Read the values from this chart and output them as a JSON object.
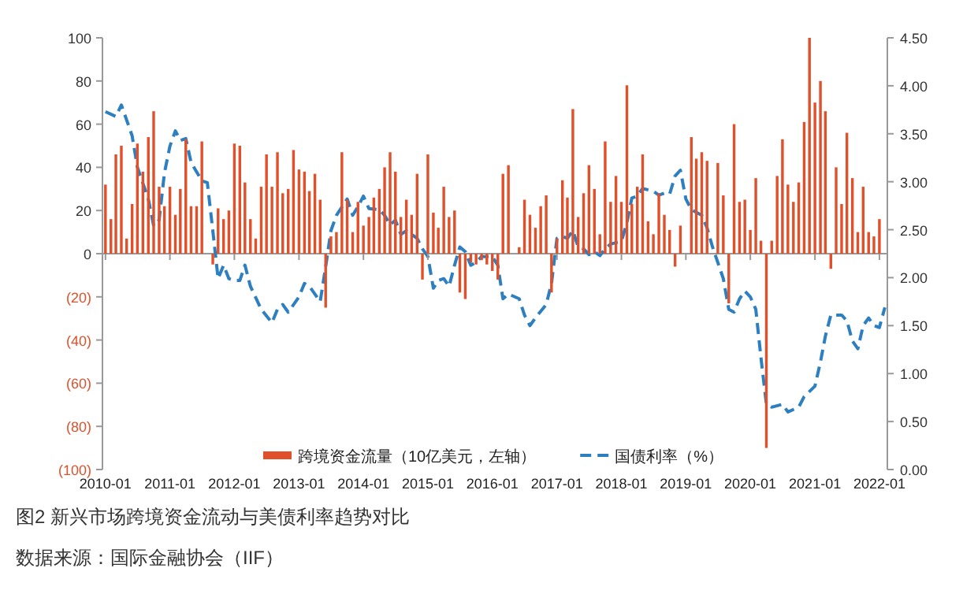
{
  "chart_data": {
    "type": "bar",
    "title": "图2 新兴市场跨境资金流动与美债利率趋势对比",
    "annotations": [
      "数据来源：国际金融协会（IIF）"
    ],
    "x": [
      "2010-01",
      "2010-02",
      "2010-03",
      "2010-04",
      "2010-05",
      "2010-06",
      "2010-07",
      "2010-08",
      "2010-09",
      "2010-10",
      "2010-11",
      "2010-12",
      "2011-01",
      "2011-02",
      "2011-03",
      "2011-04",
      "2011-05",
      "2011-06",
      "2011-07",
      "2011-08",
      "2011-09",
      "2011-10",
      "2011-11",
      "2011-12",
      "2012-01",
      "2012-02",
      "2012-03",
      "2012-04",
      "2012-05",
      "2012-06",
      "2012-07",
      "2012-08",
      "2012-09",
      "2012-10",
      "2012-11",
      "2012-12",
      "2013-01",
      "2013-02",
      "2013-03",
      "2013-04",
      "2013-05",
      "2013-06",
      "2013-07",
      "2013-08",
      "2013-09",
      "2013-10",
      "2013-11",
      "2013-12",
      "2014-01",
      "2014-02",
      "2014-03",
      "2014-04",
      "2014-05",
      "2014-06",
      "2014-07",
      "2014-08",
      "2014-09",
      "2014-10",
      "2014-11",
      "2014-12",
      "2015-01",
      "2015-02",
      "2015-03",
      "2015-04",
      "2015-05",
      "2015-06",
      "2015-07",
      "2015-08",
      "2015-09",
      "2015-10",
      "2015-11",
      "2015-12",
      "2016-01",
      "2016-02",
      "2016-03",
      "2016-04",
      "2016-05",
      "2016-06",
      "2016-07",
      "2016-08",
      "2016-09",
      "2016-10",
      "2016-11",
      "2016-12",
      "2017-01",
      "2017-02",
      "2017-03",
      "2017-04",
      "2017-05",
      "2017-06",
      "2017-07",
      "2017-08",
      "2017-09",
      "2017-10",
      "2017-11",
      "2017-12",
      "2018-01",
      "2018-02",
      "2018-03",
      "2018-04",
      "2018-05",
      "2018-06",
      "2018-07",
      "2018-08",
      "2018-09",
      "2018-10",
      "2018-11",
      "2018-12",
      "2019-01",
      "2019-02",
      "2019-03",
      "2019-04",
      "2019-05",
      "2019-06",
      "2019-07",
      "2019-08",
      "2019-09",
      "2019-10",
      "2019-11",
      "2019-12",
      "2020-01",
      "2020-02",
      "2020-03",
      "2020-04",
      "2020-05",
      "2020-06",
      "2020-07",
      "2020-08",
      "2020-09",
      "2020-10",
      "2020-11",
      "2020-12",
      "2021-01",
      "2021-02",
      "2021-03",
      "2021-04",
      "2021-05",
      "2021-06",
      "2021-07",
      "2021-08",
      "2021-09",
      "2021-10",
      "2021-11",
      "2021-12",
      "2022-01"
    ],
    "series": [
      {
        "name": "跨境资金流量（10亿美元，左轴）",
        "color": "#e0502a",
        "values": [
          32,
          16,
          46,
          50,
          7,
          23,
          51,
          38,
          54,
          66,
          31,
          22,
          31,
          18,
          30,
          53,
          22,
          22,
          52,
          0,
          -5,
          21,
          16,
          20,
          51,
          50,
          33,
          16,
          7,
          31,
          46,
          31,
          47,
          28,
          30,
          48,
          39,
          38,
          29,
          37,
          25,
          -25,
          8,
          10,
          47,
          25,
          10,
          24,
          13,
          17,
          26,
          30,
          40,
          47,
          38,
          17,
          25,
          18,
          37,
          -12,
          46,
          19,
          12,
          31,
          17,
          20,
          -18,
          -21,
          -4,
          -5,
          -3,
          -5,
          -8,
          -12,
          37,
          41,
          0,
          3,
          25,
          18,
          12,
          22,
          27,
          -18,
          7,
          34,
          26,
          67,
          17,
          28,
          41,
          30,
          9,
          52,
          24,
          36,
          24,
          78,
          23,
          31,
          46,
          15,
          9,
          28,
          18,
          11,
          -6,
          13,
          0,
          54,
          44,
          47,
          43,
          0,
          42,
          27,
          -23,
          60,
          24,
          25,
          11,
          35,
          6,
          -90,
          6,
          36,
          53,
          32,
          24,
          33,
          61,
          100,
          70,
          80,
          66,
          -7,
          40,
          23,
          56,
          35,
          10,
          31,
          10,
          8,
          16
        ]
      },
      {
        "name": "国债利率（%）",
        "type": "line",
        "axis": "y2",
        "color": "#2e7fc0",
        "line_style": "dashed",
        "x": [
          "2010-01",
          "2010-03",
          "2010-04",
          "2010-06",
          "2010-07",
          "2010-09",
          "2010-10",
          "2010-11",
          "2010-12",
          "2011-01",
          "2011-02",
          "2011-03",
          "2011-04",
          "2011-05",
          "2011-07",
          "2011-08",
          "2011-09",
          "2011-10",
          "2011-11",
          "2011-12",
          "2012-01",
          "2012-02",
          "2012-03",
          "2012-04",
          "2012-06",
          "2012-08",
          "2012-09",
          "2012-10",
          "2012-11",
          "2013-01",
          "2013-02",
          "2013-03",
          "2013-05",
          "2013-06",
          "2013-07",
          "2013-08",
          "2013-10",
          "2013-11",
          "2013-12",
          "2014-01",
          "2014-02",
          "2014-04",
          "2014-05",
          "2014-06",
          "2014-07",
          "2014-08",
          "2014-09",
          "2014-11",
          "2014-12",
          "2015-01",
          "2015-02",
          "2015-03",
          "2015-04",
          "2015-05",
          "2015-06",
          "2015-07",
          "2015-08",
          "2015-09",
          "2015-10",
          "2015-11",
          "2016-01",
          "2016-02",
          "2016-03",
          "2016-04",
          "2016-06",
          "2016-07",
          "2016-08",
          "2016-09",
          "2016-11",
          "2016-12",
          "2017-01",
          "2017-02",
          "2017-03",
          "2017-04",
          "2017-05",
          "2017-06",
          "2017-07",
          "2017-08",
          "2017-09",
          "2017-10",
          "2017-11",
          "2018-01",
          "2018-02",
          "2018-03",
          "2018-04",
          "2018-05",
          "2018-07",
          "2018-08",
          "2018-09",
          "2018-10",
          "2018-11",
          "2018-12",
          "2019-01",
          "2019-02",
          "2019-04",
          "2019-05",
          "2019-06",
          "2019-08",
          "2019-09",
          "2019-10",
          "2019-11",
          "2019-12",
          "2020-01",
          "2020-02",
          "2020-03",
          "2020-04",
          "2020-05",
          "2020-07",
          "2020-08",
          "2020-10",
          "2020-11",
          "2021-01",
          "2021-02",
          "2021-03",
          "2021-04",
          "2021-06",
          "2021-07",
          "2021-08",
          "2021-09",
          "2021-10",
          "2021-11",
          "2021-12",
          "2022-01",
          "2022-02"
        ],
        "values": [
          3.73,
          3.68,
          3.8,
          3.48,
          3.15,
          2.82,
          2.54,
          2.6,
          3.09,
          3.37,
          3.53,
          3.43,
          3.45,
          3.2,
          3.01,
          2.99,
          2.49,
          1.99,
          2.13,
          1.99,
          1.97,
          1.97,
          2.13,
          1.91,
          1.67,
          1.53,
          1.67,
          1.72,
          1.64,
          1.8,
          1.94,
          1.91,
          1.75,
          2.11,
          2.49,
          2.65,
          2.82,
          2.65,
          2.74,
          2.85,
          2.72,
          2.71,
          2.65,
          2.55,
          2.6,
          2.45,
          2.49,
          2.41,
          2.3,
          2.22,
          1.89,
          1.97,
          1.99,
          1.91,
          2.13,
          2.32,
          2.27,
          2.13,
          2.16,
          2.22,
          2.22,
          2.13,
          1.78,
          1.83,
          1.78,
          1.61,
          1.5,
          1.58,
          1.72,
          1.94,
          2.41,
          2.43,
          2.41,
          2.49,
          2.32,
          2.3,
          2.24,
          2.27,
          2.23,
          2.3,
          2.35,
          2.38,
          2.57,
          2.83,
          2.85,
          2.93,
          2.9,
          2.86,
          2.88,
          2.87,
          3.06,
          3.12,
          2.82,
          2.71,
          2.65,
          2.52,
          2.32,
          1.99,
          1.67,
          1.64,
          1.78,
          1.86,
          1.8,
          1.67,
          1.17,
          0.68,
          0.65,
          0.68,
          0.6,
          0.65,
          0.76,
          0.87,
          1.12,
          1.39,
          1.61,
          1.61,
          1.55,
          1.34,
          1.26,
          1.5,
          1.58,
          1.5,
          1.48,
          1.69
        ]
      }
    ],
    "xlim": [
      "2009-12-15",
      "2022-02-15"
    ],
    "xticks": [
      "2010-01",
      "2011-01",
      "2012-01",
      "2013-01",
      "2014-01",
      "2015-01",
      "2016-01",
      "2017-01",
      "2018-01",
      "2019-01",
      "2020-01",
      "2021-01",
      "2022-01"
    ],
    "ylim": [
      -100,
      100
    ],
    "yticks": [
      {
        "value": -100,
        "label": "(100)"
      },
      {
        "value": -80,
        "label": "(80)"
      },
      {
        "value": -60,
        "label": "(60)"
      },
      {
        "value": -40,
        "label": "(40)"
      },
      {
        "value": -20,
        "label": "(20)"
      },
      0,
      20,
      40,
      60,
      80,
      100
    ],
    "y2lim": [
      0,
      4.5
    ],
    "y2ticks": [
      {
        "value": 0,
        "label": "0.00"
      },
      {
        "value": 0.5,
        "label": "0.50"
      },
      {
        "value": 1,
        "label": "1.00"
      },
      {
        "value": 1.5,
        "label": "1.50"
      },
      {
        "value": 2,
        "label": "2.00"
      },
      {
        "value": 2.5,
        "label": "2.50"
      },
      {
        "value": 3,
        "label": "3.00"
      },
      {
        "value": 3.5,
        "label": "3.50"
      },
      {
        "value": 4,
        "label": "4.00"
      },
      {
        "value": 4.5,
        "label": "4.50"
      }
    ],
    "legend": "bottom"
  }
}
